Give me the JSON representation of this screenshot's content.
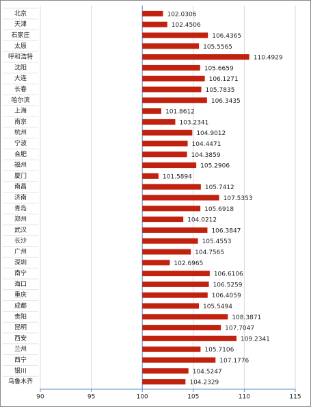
{
  "chart_data": {
    "type": "bar",
    "orientation": "horizontal",
    "categories": [
      "北京",
      "天津",
      "石家庄",
      "太原",
      "呼和浩特",
      "沈阳",
      "大连",
      "长春",
      "哈尔滨",
      "上海",
      "南京",
      "杭州",
      "宁波",
      "合肥",
      "福州",
      "厦门",
      "南昌",
      "济南",
      "青岛",
      "郑州",
      "武汉",
      "长沙",
      "广州",
      "深圳",
      "南宁",
      "海口",
      "重庆",
      "成都",
      "贵阳",
      "昆明",
      "西安",
      "兰州",
      "西宁",
      "银川",
      "乌鲁木齐"
    ],
    "values": [
      102.0306,
      102.4506,
      106.4365,
      105.5565,
      110.4929,
      105.6659,
      106.1271,
      105.7835,
      106.3435,
      101.8612,
      103.2341,
      104.9012,
      104.4471,
      104.3859,
      105.2906,
      101.5894,
      105.7412,
      107.5353,
      105.6918,
      104.0212,
      106.3847,
      105.4553,
      104.7565,
      102.6965,
      106.6106,
      106.5259,
      106.4059,
      105.5494,
      108.3871,
      107.7047,
      109.2341,
      105.7106,
      107.1776,
      104.5247,
      104.2329
    ],
    "color": "#c0220f",
    "xlim": [
      90,
      115
    ],
    "xticks": [
      90,
      95,
      100,
      105,
      110,
      115
    ],
    "origin": 100,
    "grid": true
  }
}
